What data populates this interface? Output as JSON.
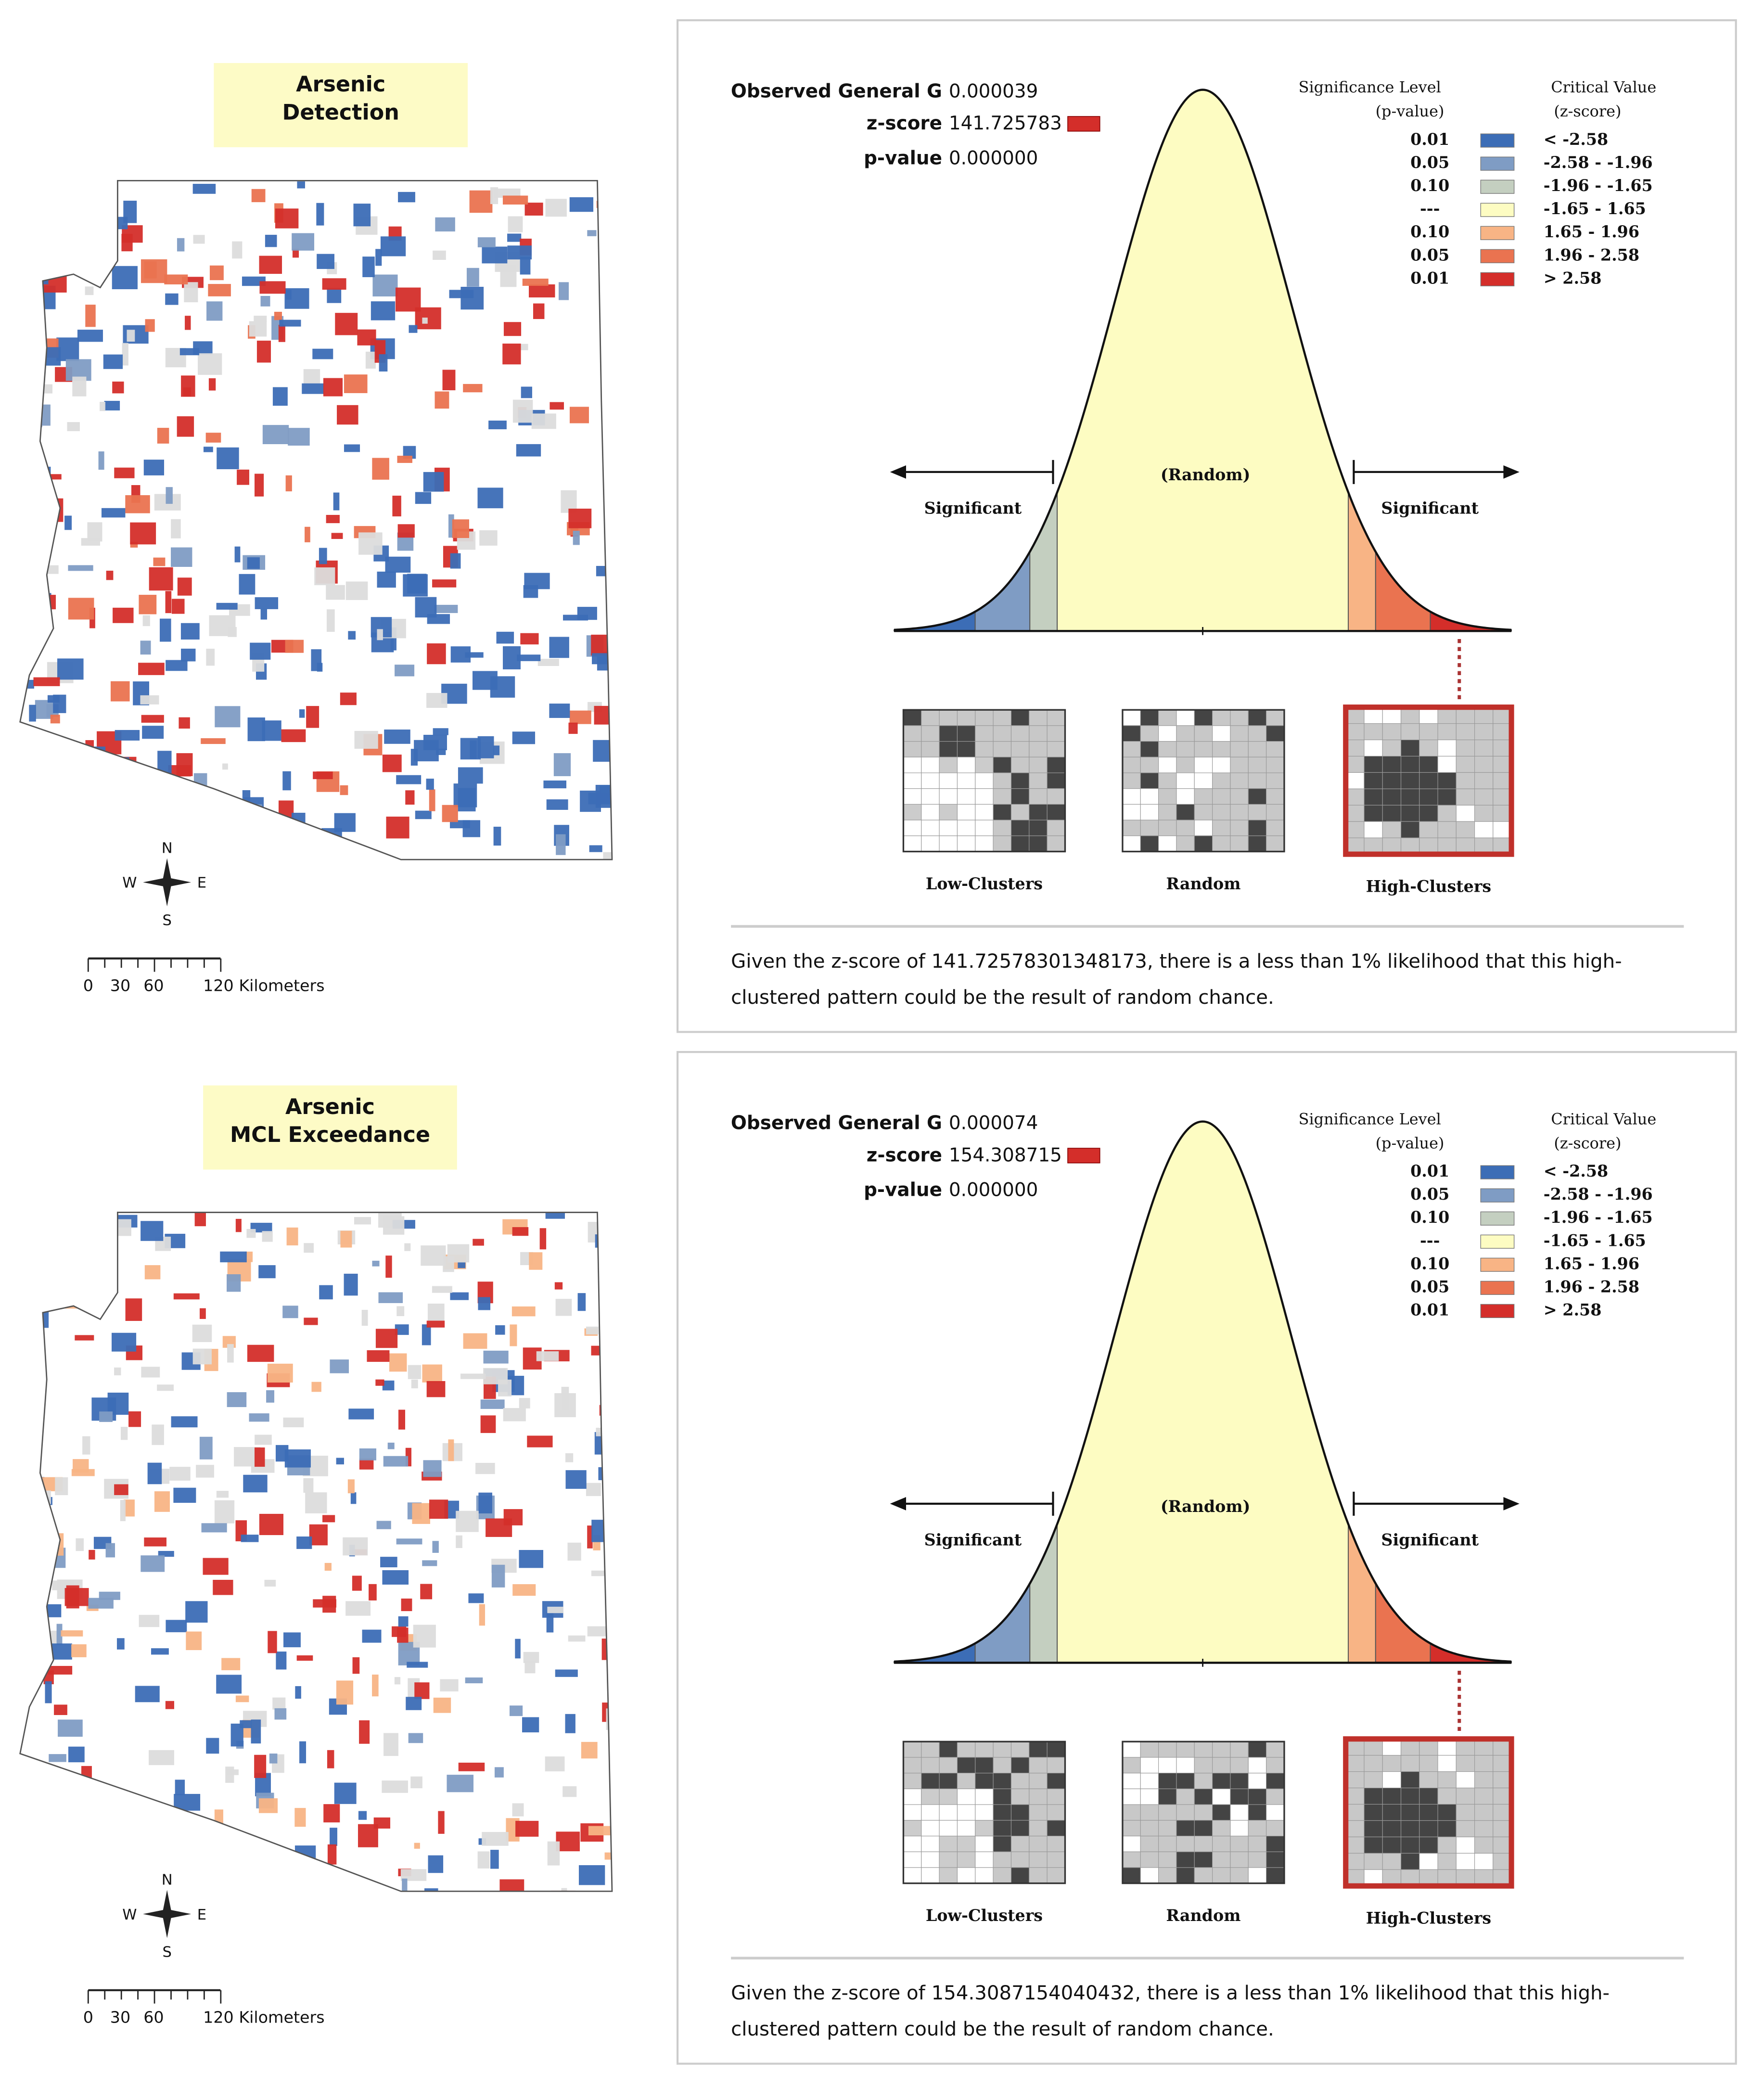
{
  "panels": [
    {
      "map": {
        "title_lines": [
          "Arsenic",
          "Detection"
        ],
        "compass": {
          "n": "N",
          "s": "S",
          "e": "E",
          "w": "W"
        },
        "scale_labels": [
          "0",
          "30",
          "60",
          "120 Kilometers"
        ]
      },
      "report": {
        "observed_g_label": "Observed General G",
        "observed_g": "0.000039",
        "z_label": "z-score",
        "z_score": "141.725783",
        "p_label": "p-value",
        "p_value": "0.000000",
        "legend_header_p": [
          "Significance Level",
          "(p-value)"
        ],
        "legend_header_z": [
          "Critical Value",
          "(z-score)"
        ],
        "legend": [
          {
            "p": "0.01",
            "z": "< -2.58",
            "range": [
              null,
              -2.58
            ],
            "color": "#3c6db6"
          },
          {
            "p": "0.05",
            "z": "-2.58 - -1.96",
            "range": [
              -2.58,
              -1.96
            ],
            "color": "#7f9cc4"
          },
          {
            "p": "0.10",
            "z": "-1.96 - -1.65",
            "range": [
              -1.96,
              -1.65
            ],
            "color": "#c4cfc0"
          },
          {
            "p": "---",
            "z": "-1.65 - 1.65",
            "range": [
              -1.65,
              1.65
            ],
            "color": "#fdfcc2"
          },
          {
            "p": "0.10",
            "z": "1.65 - 1.96",
            "range": [
              1.65,
              1.96
            ],
            "color": "#f8b485"
          },
          {
            "p": "0.05",
            "z": "1.96 - 2.58",
            "range": [
              1.96,
              2.58
            ],
            "color": "#ea7350"
          },
          {
            "p": "0.01",
            "z": "> 2.58",
            "range": [
              2.58,
              null
            ],
            "color": "#d42e2a"
          }
        ],
        "random_label": "(Random)",
        "significant_left": "Significant",
        "significant_right": "Significant",
        "thumbnails": [
          "Low-Clusters",
          "Random",
          "High-Clusters"
        ],
        "summary_lines": [
          "Given the z-score of 141.72578301348173, there is a less than 1% likelihood that this high-",
          "clustered pattern could be the result of random chance."
        ]
      }
    },
    {
      "map": {
        "title_lines": [
          "Arsenic",
          "MCL Exceedance"
        ],
        "compass": {
          "n": "N",
          "s": "S",
          "e": "E",
          "w": "W"
        },
        "scale_labels": [
          "0",
          "30",
          "60",
          "120 Kilometers"
        ]
      },
      "report": {
        "observed_g_label": "Observed General G",
        "observed_g": "0.000074",
        "z_label": "z-score",
        "z_score": "154.308715",
        "p_label": "p-value",
        "p_value": "0.000000",
        "legend_header_p": [
          "Significance Level",
          "(p-value)"
        ],
        "legend_header_z": [
          "Critical Value",
          "(z-score)"
        ],
        "legend": [
          {
            "p": "0.01",
            "z": "< -2.58",
            "range": [
              null,
              -2.58
            ],
            "color": "#3c6db6"
          },
          {
            "p": "0.05",
            "z": "-2.58 - -1.96",
            "range": [
              -2.58,
              -1.96
            ],
            "color": "#7f9cc4"
          },
          {
            "p": "0.10",
            "z": "-1.96 - -1.65",
            "range": [
              -1.96,
              -1.65
            ],
            "color": "#c4cfc0"
          },
          {
            "p": "---",
            "z": "-1.65 - 1.65",
            "range": [
              -1.65,
              1.65
            ],
            "color": "#fdfcc2"
          },
          {
            "p": "0.10",
            "z": "1.65 - 1.96",
            "range": [
              1.65,
              1.96
            ],
            "color": "#f8b485"
          },
          {
            "p": "0.05",
            "z": "1.96 - 2.58",
            "range": [
              1.96,
              2.58
            ],
            "color": "#ea7350"
          },
          {
            "p": "0.01",
            "z": "> 2.58",
            "range": [
              2.58,
              null
            ],
            "color": "#d42e2a"
          }
        ],
        "random_label": "(Random)",
        "significant_left": "Significant",
        "significant_right": "Significant",
        "thumbnails": [
          "Low-Clusters",
          "Random",
          "High-Clusters"
        ],
        "summary_lines": [
          "Given the z-score of 154.3087154040432, there is a less than 1% likelihood that this high-",
          "clustered pattern could be the result of random chance."
        ]
      }
    }
  ]
}
